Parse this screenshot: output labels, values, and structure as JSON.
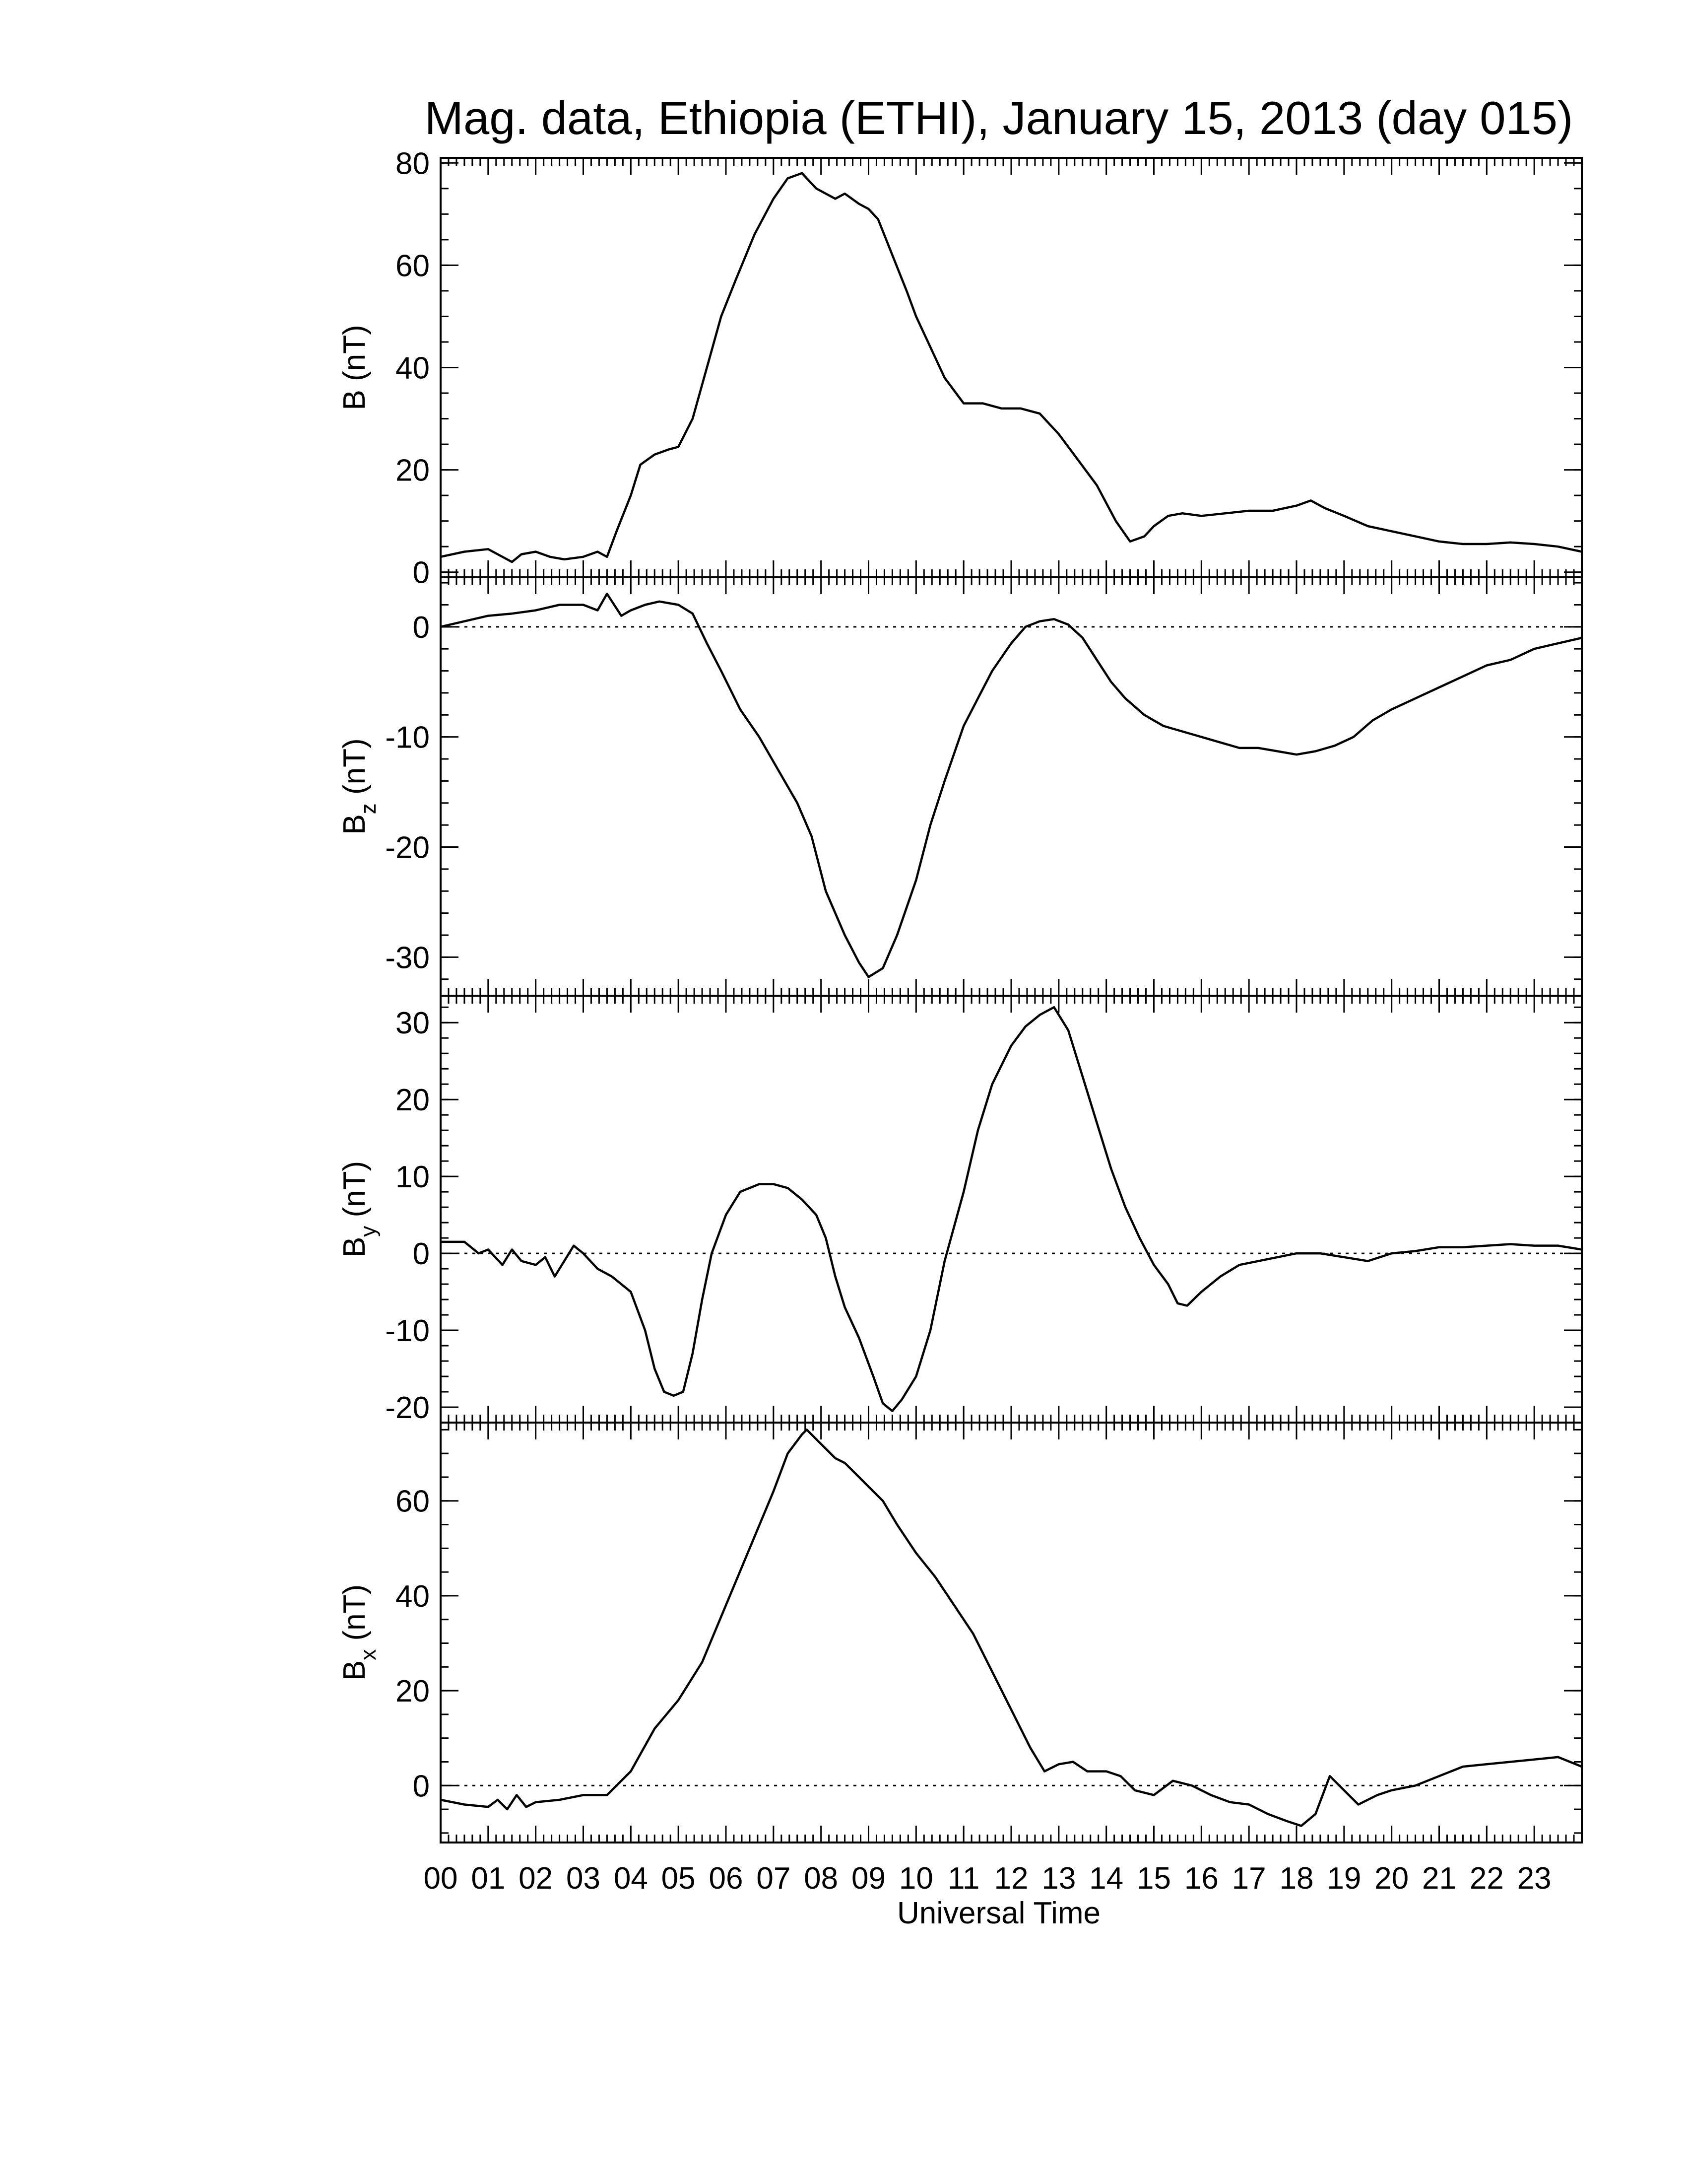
{
  "chart_data": {
    "type": "line",
    "title": "Mag. data, Ethiopia (ETHI), January 15, 2013 (day 015)",
    "xlabel": "Universal Time",
    "xlim": [
      0,
      24
    ],
    "x_tick_labels": [
      "00",
      "01",
      "02",
      "03",
      "04",
      "05",
      "06",
      "07",
      "08",
      "09",
      "10",
      "11",
      "12",
      "13",
      "14",
      "15",
      "16",
      "17",
      "18",
      "19",
      "20",
      "21",
      "22",
      "23"
    ],
    "panels": [
      {
        "key": "B",
        "ylabel": "B",
        "ylabel_sub": "",
        "ylabel_unit": "(nT)",
        "ylim": [
          -1,
          81
        ],
        "yticks": [
          0,
          20,
          40,
          60,
          80
        ],
        "zero_line": false,
        "x": [
          0,
          0.5,
          1,
          1.3,
          1.5,
          1.7,
          2,
          2.3,
          2.6,
          3,
          3.3,
          3.5,
          3.7,
          4,
          4.2,
          4.5,
          4.8,
          5,
          5.3,
          5.6,
          5.9,
          6.2,
          6.6,
          7,
          7.3,
          7.6,
          7.7,
          7.9,
          8.1,
          8.3,
          8.5,
          8.8,
          9,
          9.2,
          9.5,
          9.8,
          10,
          10.3,
          10.6,
          11,
          11.4,
          11.8,
          12.2,
          12.6,
          13,
          13.4,
          13.8,
          14.2,
          14.5,
          14.8,
          15,
          15.3,
          15.6,
          16,
          16.5,
          17,
          17.5,
          18,
          18.3,
          18.6,
          19,
          19.5,
          20,
          20.5,
          21,
          21.5,
          22,
          22.5,
          23,
          23.5,
          24
        ],
        "y": [
          3,
          4,
          4.5,
          3,
          2,
          3.5,
          4,
          3,
          2.5,
          3,
          4,
          3,
          8,
          15,
          21,
          23,
          24,
          24.5,
          30,
          40,
          50,
          57,
          66,
          73,
          77,
          78,
          77,
          75,
          74,
          73,
          74,
          72,
          71,
          69,
          62,
          55,
          50,
          44,
          38,
          33,
          33,
          32,
          32,
          31,
          27,
          22,
          17,
          10,
          6,
          7,
          9,
          11,
          11.5,
          11,
          11.5,
          12,
          12,
          13,
          14,
          12.5,
          11,
          9,
          8,
          7,
          6,
          5.5,
          5.5,
          5.8,
          5.5,
          5,
          4
        ]
      },
      {
        "key": "Bz",
        "ylabel": "B",
        "ylabel_sub": "z",
        "ylabel_unit": "(nT)",
        "ylim": [
          -33.5,
          4.5
        ],
        "yticks": [
          0,
          -10,
          -20,
          -30
        ],
        "zero_line": true,
        "x": [
          0,
          0.5,
          1,
          1.5,
          2,
          2.5,
          3,
          3.3,
          3.5,
          3.8,
          4,
          4.3,
          4.6,
          5,
          5.3,
          5.6,
          5.9,
          6.3,
          6.7,
          7.1,
          7.5,
          7.8,
          8.1,
          8.5,
          8.8,
          9,
          9.3,
          9.6,
          10,
          10.3,
          10.6,
          11,
          11.3,
          11.6,
          12,
          12.3,
          12.6,
          12.9,
          13.2,
          13.5,
          13.8,
          14.1,
          14.4,
          14.8,
          15.2,
          15.6,
          16,
          16.4,
          16.8,
          17.2,
          17.6,
          18,
          18.4,
          18.8,
          19.2,
          19.6,
          20,
          20.5,
          21,
          21.5,
          22,
          22.5,
          23,
          23.5,
          24
        ],
        "y": [
          0,
          0.5,
          1,
          1.2,
          1.5,
          2,
          2,
          1.5,
          3,
          1,
          1.5,
          2,
          2.3,
          2,
          1.2,
          -1.5,
          -4,
          -7.5,
          -10,
          -13,
          -16,
          -19,
          -24,
          -28,
          -30.5,
          -31.8,
          -31,
          -28,
          -23,
          -18,
          -14,
          -9,
          -6.5,
          -4,
          -1.5,
          0,
          0.5,
          0.7,
          0.2,
          -1,
          -3,
          -5,
          -6.5,
          -8,
          -9,
          -9.5,
          -10,
          -10.5,
          -11,
          -11,
          -11.3,
          -11.6,
          -11.3,
          -10.8,
          -10,
          -8.5,
          -7.5,
          -6.5,
          -5.5,
          -4.5,
          -3.5,
          -3,
          -2,
          -1.5,
          -1
        ]
      },
      {
        "key": "By",
        "ylabel": "B",
        "ylabel_sub": "y",
        "ylabel_unit": "(nT)",
        "ylim": [
          -22,
          33.5
        ],
        "yticks": [
          30,
          20,
          10,
          0,
          -10,
          -20
        ],
        "zero_line": true,
        "x": [
          0,
          0.5,
          0.8,
          1,
          1.3,
          1.5,
          1.7,
          2,
          2.2,
          2.4,
          2.6,
          2.8,
          3,
          3.3,
          3.6,
          4,
          4.3,
          4.5,
          4.7,
          4.9,
          5.1,
          5.3,
          5.5,
          5.7,
          6,
          6.3,
          6.7,
          7,
          7.3,
          7.6,
          7.9,
          8.1,
          8.3,
          8.5,
          8.8,
          9.1,
          9.3,
          9.5,
          9.7,
          10,
          10.3,
          10.6,
          11,
          11.3,
          11.6,
          12,
          12.3,
          12.6,
          12.9,
          13.2,
          13.5,
          13.8,
          14.1,
          14.4,
          14.7,
          15,
          15.3,
          15.5,
          15.7,
          16,
          16.4,
          16.8,
          17.2,
          17.6,
          18,
          18.5,
          19,
          19.5,
          20,
          20.5,
          21,
          21.5,
          22,
          22.5,
          23,
          23.5,
          24
        ],
        "y": [
          1.5,
          1.5,
          0,
          0.5,
          -1.5,
          0.5,
          -1,
          -1.5,
          -0.5,
          -3,
          -1,
          1,
          0,
          -2,
          -3,
          -5,
          -10,
          -15,
          -18,
          -18.5,
          -18,
          -13,
          -6,
          0,
          5,
          8,
          9,
          9,
          8.5,
          7,
          5,
          2,
          -3,
          -7,
          -11,
          -16,
          -19.5,
          -20.5,
          -19,
          -16,
          -10,
          -1,
          8,
          16,
          22,
          27,
          29.5,
          31,
          32,
          29,
          23,
          17,
          11,
          6,
          2,
          -1.5,
          -4,
          -6.5,
          -6.8,
          -5,
          -3,
          -1.5,
          -1,
          -0.5,
          0,
          0,
          -0.5,
          -1,
          0,
          0.3,
          0.8,
          0.8,
          1,
          1.2,
          1,
          1,
          0.5
        ]
      },
      {
        "key": "Bx",
        "ylabel": "B",
        "ylabel_sub": "x",
        "ylabel_unit": "(nT)",
        "ylim": [
          -12,
          76.5
        ],
        "yticks": [
          0,
          20,
          40,
          60
        ],
        "zero_line": true,
        "x": [
          0,
          0.5,
          1,
          1.2,
          1.4,
          1.6,
          1.8,
          2,
          2.5,
          3,
          3.5,
          4,
          4.5,
          5,
          5.5,
          6,
          6.5,
          7,
          7.3,
          7.6,
          7.7,
          7.9,
          8.1,
          8.3,
          8.5,
          8.8,
          9,
          9.3,
          9.6,
          10,
          10.4,
          10.8,
          11.2,
          11.6,
          12,
          12.4,
          12.7,
          13,
          13.3,
          13.6,
          14,
          14.3,
          14.6,
          15,
          15.4,
          15.8,
          16.2,
          16.6,
          17,
          17.4,
          17.8,
          18.1,
          18.4,
          18.7,
          19,
          19.3,
          19.7,
          20,
          20.5,
          21,
          21.5,
          22,
          22.5,
          23,
          23.5,
          24
        ],
        "y": [
          -3,
          -4,
          -4.5,
          -3,
          -5,
          -2,
          -4.5,
          -3.5,
          -3,
          -2,
          -2,
          3,
          12,
          18,
          26,
          38,
          50,
          62,
          70,
          74,
          75,
          73,
          71,
          69,
          68,
          65,
          63,
          60,
          55,
          49,
          44,
          38,
          32,
          24,
          16,
          8,
          3,
          4.5,
          5,
          3,
          3,
          2,
          -1,
          -2,
          1,
          0,
          -2,
          -3.5,
          -4,
          -6,
          -7.5,
          -8.5,
          -6,
          2,
          -1,
          -4,
          -2,
          -1,
          0,
          2,
          4,
          4.5,
          5,
          5.5,
          6,
          4
        ]
      }
    ]
  }
}
